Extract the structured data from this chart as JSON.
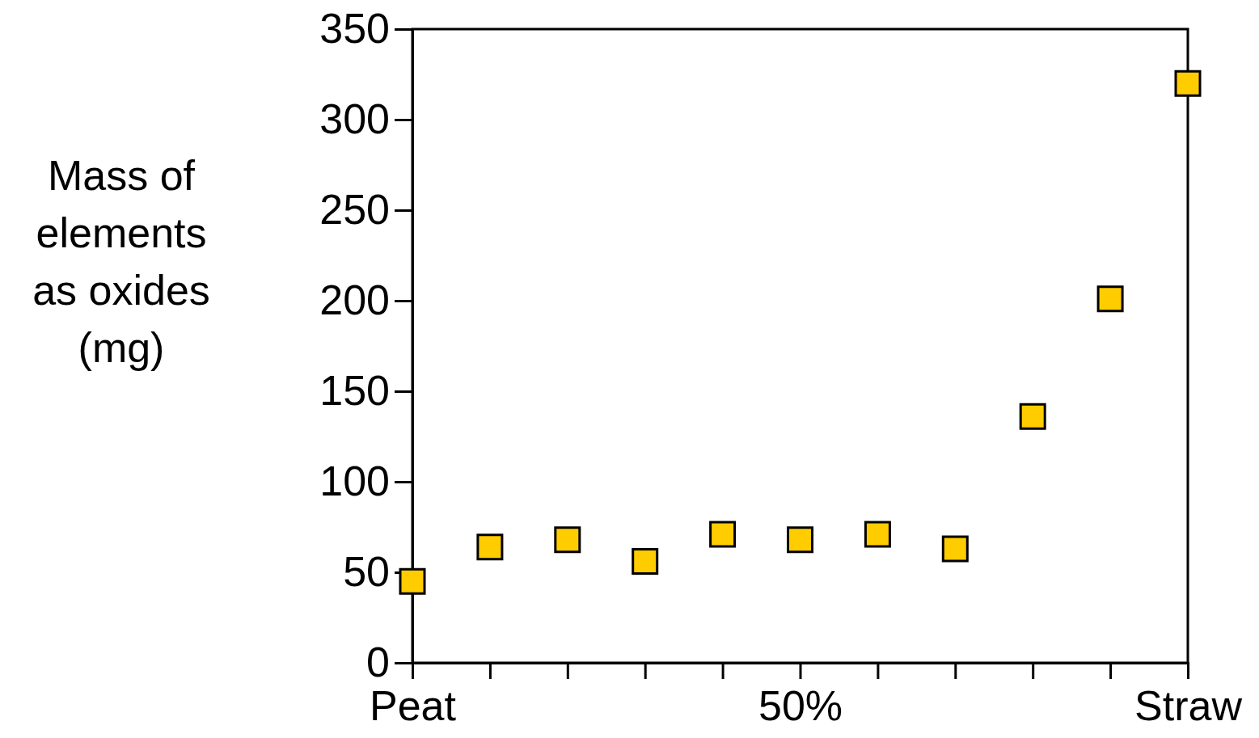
{
  "chart_data": {
    "type": "scatter",
    "ylabel": "Mass of elements as oxides (mg)",
    "categories": [
      "Peat",
      null,
      null,
      null,
      null,
      "50%",
      null,
      null,
      null,
      null,
      "Straw"
    ],
    "values": [
      45,
      64,
      68,
      56,
      71,
      68,
      71,
      63,
      136,
      201,
      320
    ],
    "color": "#ffcc00",
    "marker": "square",
    "ylim": [
      0,
      350
    ],
    "yticks": [
      0,
      50,
      100,
      150,
      200,
      250,
      300,
      350
    ],
    "grid": false
  }
}
